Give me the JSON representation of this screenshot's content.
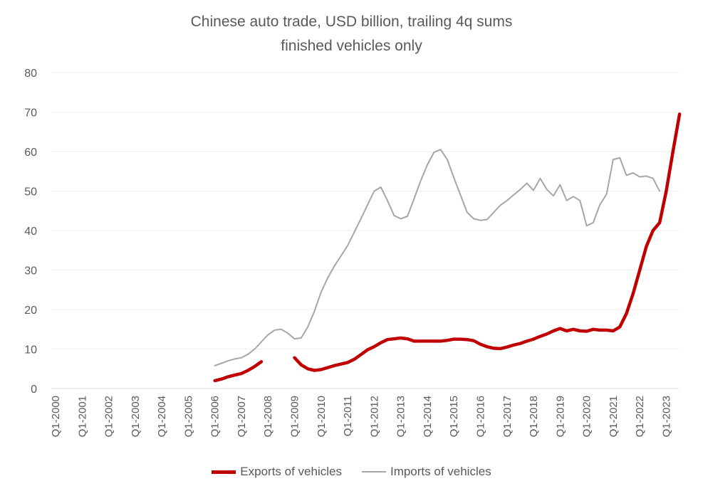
{
  "chart_data": {
    "type": "line",
    "title": "Chinese auto trade, USD billion, trailing 4q sums",
    "subtitle": "finished vehicles only",
    "xlabel": "",
    "ylabel": "",
    "ylim": [
      0,
      80
    ],
    "yticks": [
      0,
      10,
      20,
      30,
      40,
      50,
      60,
      70,
      80
    ],
    "grid": true,
    "legend": "bottom",
    "xticks": [
      "Q1-2000",
      "Q1-2001",
      "Q1-2002",
      "Q1-2003",
      "Q1-2004",
      "Q1-2005",
      "Q1-2006",
      "Q1-2007",
      "Q1-2008",
      "Q1-2009",
      "Q1-2010",
      "Q1-2011",
      "Q1-2012",
      "Q1-2013",
      "Q1-2014",
      "Q1-2015",
      "Q1-2016",
      "Q1-2017",
      "Q1-2018",
      "Q1-2019",
      "Q1-2020",
      "Q1-2021",
      "Q1-2022",
      "Q1-2023"
    ],
    "x_start": "Q1-2000",
    "series": [
      {
        "name": "Exports of vehicles",
        "color": "#c00000",
        "style": "thick",
        "values": [
          null,
          null,
          null,
          null,
          null,
          null,
          null,
          null,
          null,
          null,
          null,
          null,
          null,
          null,
          null,
          null,
          null,
          null,
          null,
          null,
          null,
          null,
          null,
          null,
          2.0,
          2.4,
          3.0,
          3.4,
          3.8,
          4.6,
          5.6,
          6.8,
          null,
          null,
          null,
          null,
          7.8,
          6.0,
          5.0,
          4.6,
          4.8,
          5.3,
          5.8,
          6.2,
          6.6,
          7.4,
          8.6,
          9.8,
          10.6,
          11.6,
          12.4,
          12.6,
          12.8,
          12.6,
          12.0,
          12.0,
          12.0,
          12.0,
          12.0,
          12.2,
          12.5,
          12.5,
          12.4,
          12.1,
          11.2,
          10.6,
          10.2,
          10.1,
          10.5,
          11.0,
          11.4,
          12.0,
          12.5,
          13.2,
          13.8,
          14.6,
          15.2,
          14.6,
          15.0,
          14.6,
          14.5,
          15.0,
          14.8,
          14.8,
          14.6,
          15.6,
          19.0,
          24.0,
          30.0,
          36.0,
          40.0,
          42.0,
          50.0,
          60.0,
          69.5
        ]
      },
      {
        "name": "Imports of vehicles",
        "color": "#a6a6a6",
        "style": "thin",
        "values": [
          null,
          null,
          null,
          null,
          null,
          null,
          null,
          null,
          null,
          null,
          null,
          null,
          null,
          null,
          null,
          null,
          null,
          null,
          null,
          null,
          null,
          null,
          null,
          null,
          5.8,
          6.4,
          7.0,
          7.5,
          7.8,
          8.7,
          10.0,
          11.8,
          13.6,
          14.8,
          15.0,
          14.0,
          12.6,
          12.8,
          15.6,
          19.6,
          24.4,
          28.0,
          31.0,
          33.6,
          36.2,
          39.6,
          43.0,
          46.5,
          50.0,
          51.0,
          47.6,
          43.8,
          43.0,
          43.6,
          48.0,
          52.6,
          56.6,
          59.8,
          60.5,
          58.0,
          53.4,
          49.0,
          44.6,
          43.0,
          42.6,
          42.8,
          44.6,
          46.4,
          47.6,
          49.0,
          50.4,
          52.0,
          50.2,
          53.2,
          50.4,
          48.8,
          51.6,
          47.6,
          48.6,
          47.6,
          41.2,
          42.0,
          46.5,
          49.2,
          58.0,
          58.4,
          54.0,
          54.6,
          53.6,
          53.8,
          53.2,
          50.0
        ]
      }
    ]
  }
}
